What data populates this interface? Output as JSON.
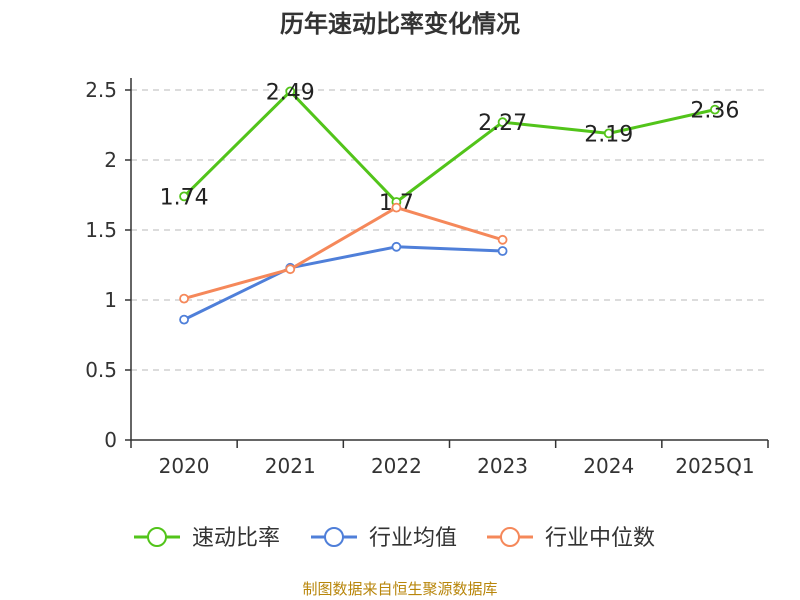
{
  "chart_data": {
    "type": "line",
    "title": "历年速动比率变化情况",
    "categories": [
      "2020",
      "2021",
      "2022",
      "2023",
      "2024",
      "2025Q1"
    ],
    "ylim": [
      0,
      2.5
    ],
    "yticks": [
      "0",
      "0.5",
      "1",
      "1.5",
      "2",
      "2.5"
    ],
    "grid": true,
    "legend_position": "bottom",
    "series": [
      {
        "name": "速动比率",
        "color": "#52c41a",
        "values": [
          1.74,
          2.49,
          1.7,
          2.27,
          2.19,
          2.36
        ],
        "labels": [
          "1.74",
          "2.49",
          "1.7",
          "2.27",
          "2.19",
          "2.36"
        ]
      },
      {
        "name": "行业均值",
        "color": "#4f7fd9",
        "values": [
          0.86,
          1.23,
          1.38,
          1.35,
          null,
          null
        ]
      },
      {
        "name": "行业中位数",
        "color": "#f5885a",
        "values": [
          1.01,
          1.22,
          1.66,
          1.43,
          null,
          null
        ]
      }
    ]
  },
  "source": "制图数据来自恒生聚源数据库"
}
